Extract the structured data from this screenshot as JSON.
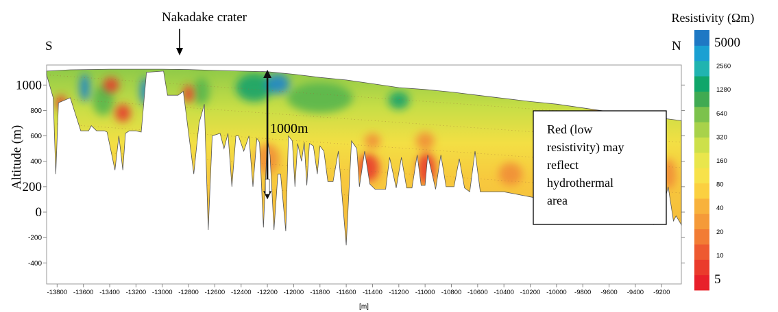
{
  "labels": {
    "crater": "Nakadake crater",
    "south": "S",
    "north": "N",
    "y_axis": "Altitude (m)",
    "x_axis": "[m]",
    "depth_marker": "1000m",
    "note_lines": [
      "Red (low",
      "resistivity) may",
      "reflect",
      "hydrothermal",
      "area"
    ]
  },
  "chart_data": {
    "type": "heatmap",
    "xlabel": "[m]",
    "ylabel": "Altitude (m)",
    "xlim": [
      -13880,
      -9050
    ],
    "ylim": [
      -600,
      1150
    ],
    "x_ticks": [
      -13800,
      -13600,
      -13400,
      -13200,
      -13000,
      -12800,
      -12600,
      -12400,
      -12200,
      -12000,
      -11800,
      -11600,
      -11400,
      -11200,
      -11000,
      -10800,
      -10600,
      -10400,
      -10200,
      -10000,
      -9800,
      -9600,
      -9400,
      -9200
    ],
    "y_ticks": [
      {
        "value": 1000,
        "label": "1000",
        "large": true
      },
      {
        "value": 800,
        "label": "800",
        "large": false
      },
      {
        "value": 600,
        "label": "600",
        "large": false
      },
      {
        "value": 400,
        "label": "400",
        "large": false
      },
      {
        "value": 200,
        "label": "200",
        "large": true
      },
      {
        "value": 0,
        "label": "0",
        "large": true
      },
      {
        "value": -200,
        "label": "-200",
        "large": false
      },
      {
        "value": -400,
        "label": "-400",
        "large": false
      }
    ],
    "depth_arrow": {
      "x": -12200,
      "y_top": 1120,
      "y_bottom": 100
    },
    "crater_x": -12850,
    "colorbar": {
      "title": "Resistivity (Ωm)",
      "labels": [
        {
          "value": 5000,
          "label": "5000",
          "large": true
        },
        {
          "value": 2560,
          "label": "2560",
          "large": false
        },
        {
          "value": 1280,
          "label": "1280",
          "large": false
        },
        {
          "value": 640,
          "label": "640",
          "large": false
        },
        {
          "value": 320,
          "label": "320",
          "large": false
        },
        {
          "value": 160,
          "label": "160",
          "large": false
        },
        {
          "value": 80,
          "label": "80",
          "large": false
        },
        {
          "value": 40,
          "label": "40",
          "large": false
        },
        {
          "value": 20,
          "label": "20",
          "large": false
        },
        {
          "value": 10,
          "label": "10",
          "large": false
        },
        {
          "value": 5,
          "label": "5",
          "large": true
        }
      ],
      "colors": [
        "#e8202a",
        "#ea3b2c",
        "#ee5a30",
        "#f27c34",
        "#f59a38",
        "#f8b23c",
        "#fbd040",
        "#f7e24a",
        "#e9e64c",
        "#cde04a",
        "#a8d24a",
        "#7cc24c",
        "#40aa52",
        "#10a66a",
        "#20b4b0",
        "#1aa0d2",
        "#1e78c4"
      ]
    },
    "profile": {
      "surface": [
        [
          -13880,
          1110
        ],
        [
          -13700,
          1120
        ],
        [
          -13400,
          1125
        ],
        [
          -13000,
          1125
        ],
        [
          -12800,
          1122
        ],
        [
          -12600,
          1115
        ],
        [
          -12400,
          1110
        ],
        [
          -12200,
          1105
        ],
        [
          -12000,
          1085
        ],
        [
          -11800,
          1060
        ],
        [
          -11600,
          1040
        ],
        [
          -11400,
          1010
        ],
        [
          -11200,
          980
        ],
        [
          -11000,
          965
        ],
        [
          -10800,
          945
        ],
        [
          -10600,
          920
        ],
        [
          -10400,
          895
        ],
        [
          -10200,
          870
        ],
        [
          -10000,
          850
        ],
        [
          -9800,
          820
        ],
        [
          -9600,
          790
        ],
        [
          -9400,
          770
        ],
        [
          -9200,
          740
        ],
        [
          -9050,
          720
        ]
      ],
      "base": [
        [
          -13880,
          1080
        ],
        [
          -13830,
          900
        ],
        [
          -13810,
          300
        ],
        [
          -13790,
          860
        ],
        [
          -13700,
          900
        ],
        [
          -13620,
          640
        ],
        [
          -13560,
          640
        ],
        [
          -13540,
          680
        ],
        [
          -13500,
          640
        ],
        [
          -13440,
          640
        ],
        [
          -13420,
          630
        ],
        [
          -13360,
          330
        ],
        [
          -13330,
          600
        ],
        [
          -13300,
          330
        ],
        [
          -13280,
          620
        ],
        [
          -13250,
          640
        ],
        [
          -13200,
          640
        ],
        [
          -13160,
          630
        ],
        [
          -13120,
          1100
        ],
        [
          -12990,
          1110
        ],
        [
          -12960,
          920
        ],
        [
          -12880,
          920
        ],
        [
          -12840,
          950
        ],
        [
          -12760,
          300
        ],
        [
          -12720,
          700
        ],
        [
          -12680,
          850
        ],
        [
          -12650,
          -140
        ],
        [
          -12620,
          600
        ],
        [
          -12560,
          620
        ],
        [
          -12530,
          500
        ],
        [
          -12500,
          620
        ],
        [
          -12470,
          200
        ],
        [
          -12440,
          600
        ],
        [
          -12420,
          600
        ],
        [
          -12380,
          480
        ],
        [
          -12340,
          600
        ],
        [
          -12310,
          200
        ],
        [
          -12280,
          580
        ],
        [
          -12260,
          550
        ],
        [
          -12230,
          -120
        ],
        [
          -12200,
          580
        ],
        [
          -12180,
          450
        ],
        [
          -12150,
          -140
        ],
        [
          -12120,
          300
        ],
        [
          -12100,
          300
        ],
        [
          -12060,
          -150
        ],
        [
          -12040,
          600
        ],
        [
          -12010,
          560
        ],
        [
          -11990,
          200
        ],
        [
          -11970,
          540
        ],
        [
          -11940,
          400
        ],
        [
          -11920,
          550
        ],
        [
          -11900,
          210
        ],
        [
          -11880,
          540
        ],
        [
          -11850,
          520
        ],
        [
          -11820,
          300
        ],
        [
          -11800,
          520
        ],
        [
          -11770,
          480
        ],
        [
          -11740,
          240
        ],
        [
          -11700,
          240
        ],
        [
          -11660,
          480
        ],
        [
          -11600,
          -260
        ],
        [
          -11560,
          560
        ],
        [
          -11520,
          500
        ],
        [
          -11500,
          200
        ],
        [
          -11460,
          480
        ],
        [
          -11420,
          220
        ],
        [
          -11380,
          180
        ],
        [
          -11300,
          180
        ],
        [
          -11270,
          430
        ],
        [
          -11220,
          190
        ],
        [
          -11180,
          430
        ],
        [
          -11140,
          190
        ],
        [
          -11100,
          190
        ],
        [
          -11060,
          450
        ],
        [
          -11030,
          210
        ],
        [
          -11000,
          210
        ],
        [
          -10980,
          450
        ],
        [
          -10920,
          180
        ],
        [
          -10880,
          450
        ],
        [
          -10840,
          200
        ],
        [
          -10780,
          200
        ],
        [
          -10740,
          420
        ],
        [
          -10700,
          190
        ],
        [
          -10660,
          160
        ],
        [
          -10620,
          480
        ],
        [
          -10580,
          160
        ],
        [
          -10400,
          160
        ],
        [
          -10300,
          140
        ],
        [
          -10200,
          120
        ],
        [
          -10100,
          100
        ],
        [
          -9950,
          80
        ],
        [
          -9800,
          60
        ],
        [
          -9600,
          40
        ],
        [
          -9400,
          10
        ],
        [
          -9280,
          -10
        ],
        [
          -9260,
          -100
        ],
        [
          -9240,
          0
        ],
        [
          -9200,
          0
        ],
        [
          -9150,
          200
        ],
        [
          -9110,
          -70
        ],
        [
          -9090,
          -30
        ],
        [
          -9050,
          -100
        ]
      ]
    },
    "low_resistivity_zones": [
      {
        "x": -13770,
        "y": 860,
        "rx": 40,
        "ry": 60,
        "level": "low"
      },
      {
        "x": -13390,
        "y": 1000,
        "rx": 60,
        "ry": 60,
        "level": "low"
      },
      {
        "x": -13300,
        "y": 780,
        "rx": 60,
        "ry": 70,
        "level": "low"
      },
      {
        "x": -12800,
        "y": 930,
        "rx": 40,
        "ry": 70,
        "level": "low"
      },
      {
        "x": -12200,
        "y": 420,
        "rx": 90,
        "ry": 120,
        "level": "medium"
      },
      {
        "x": -11430,
        "y": 350,
        "rx": 80,
        "ry": 110,
        "level": "low"
      },
      {
        "x": -11400,
        "y": 560,
        "rx": 60,
        "ry": 60,
        "level": "medium"
      },
      {
        "x": -10990,
        "y": 340,
        "rx": 70,
        "ry": 130,
        "level": "low"
      },
      {
        "x": -11000,
        "y": 560,
        "rx": 70,
        "ry": 70,
        "level": "medium"
      },
      {
        "x": -10350,
        "y": 300,
        "rx": 90,
        "ry": 90,
        "level": "medium"
      },
      {
        "x": -9650,
        "y": 800,
        "rx": 90,
        "ry": 30,
        "level": "low"
      },
      {
        "x": -9150,
        "y": 300,
        "rx": 60,
        "ry": 120,
        "level": "medium"
      }
    ],
    "high_resistivity_zones": [
      {
        "x": -13590,
        "y": 980,
        "rx": 40,
        "ry": 110,
        "level": "very-high"
      },
      {
        "x": -13130,
        "y": 950,
        "rx": 40,
        "ry": 110,
        "level": "very-high"
      },
      {
        "x": -12300,
        "y": 980,
        "rx": 140,
        "ry": 110,
        "level": "high"
      },
      {
        "x": -12120,
        "y": 1010,
        "rx": 90,
        "ry": 80,
        "level": "very-high"
      },
      {
        "x": -11800,
        "y": 900,
        "rx": 250,
        "ry": 120,
        "level": "medium-high"
      },
      {
        "x": -11200,
        "y": 880,
        "rx": 80,
        "ry": 70,
        "level": "high"
      },
      {
        "x": -12700,
        "y": 950,
        "rx": 60,
        "ry": 110,
        "level": "medium-high"
      },
      {
        "x": -13450,
        "y": 880,
        "rx": 80,
        "ry": 120,
        "level": "medium-high"
      }
    ]
  }
}
